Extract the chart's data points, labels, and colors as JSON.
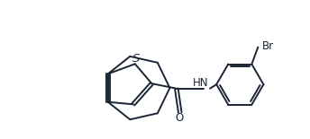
{
  "bg_color": "#ffffff",
  "line_color": "#1a2535",
  "lw": 1.4,
  "font_size": 8.5,
  "figsize": [
    3.44,
    1.55
  ],
  "dpi": 100,
  "xlim": [
    0.0,
    10.5
  ],
  "ylim": [
    0.5,
    4.8
  ]
}
